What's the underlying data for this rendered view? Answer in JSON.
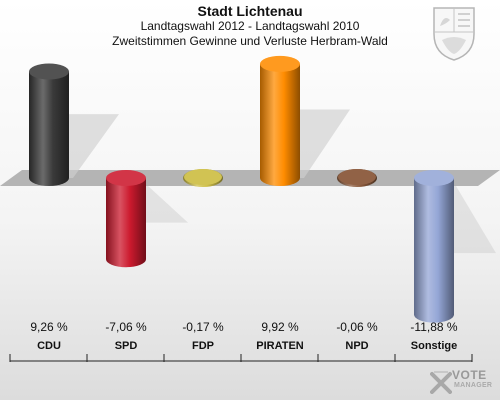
{
  "header": {
    "title": "Stadt Lichtenau",
    "subtitle1": "Landtagswahl 2012 - Landtagswahl 2010",
    "subtitle2": "Zweitstimmen Gewinne und Verluste Herbram-Wald"
  },
  "watermark": {
    "brand": "VOTE",
    "sub": "MANAGER",
    "logo_icon": "ballot-x-icon"
  },
  "crest_icon": "coat-of-arms-nrw-icon",
  "chart_data": {
    "type": "bar",
    "title": "Stadt Lichtenau",
    "subtitle": "Landtagswahl 2012 - Landtagswahl 2010 / Zweitstimmen Gewinne und Verluste Herbram-Wald",
    "categories": [
      "CDU",
      "SPD",
      "FDP",
      "PIRATEN",
      "NPD",
      "Sonstige"
    ],
    "values": [
      9.26,
      -7.06,
      -0.17,
      9.92,
      -0.06,
      -11.88
    ],
    "value_labels": [
      "9,26 %",
      "-7,06 %",
      "-0,17 %",
      "9,92 %",
      "-0,06 %",
      "-11,88 %"
    ],
    "colors": [
      "#3a3a3a",
      "#cc1a2e",
      "#cfc04a",
      "#ff8c00",
      "#8b5a3c",
      "#94a6d6"
    ],
    "unit": "%",
    "ylim": [
      -12,
      10
    ],
    "grid": false,
    "legend": "none"
  }
}
